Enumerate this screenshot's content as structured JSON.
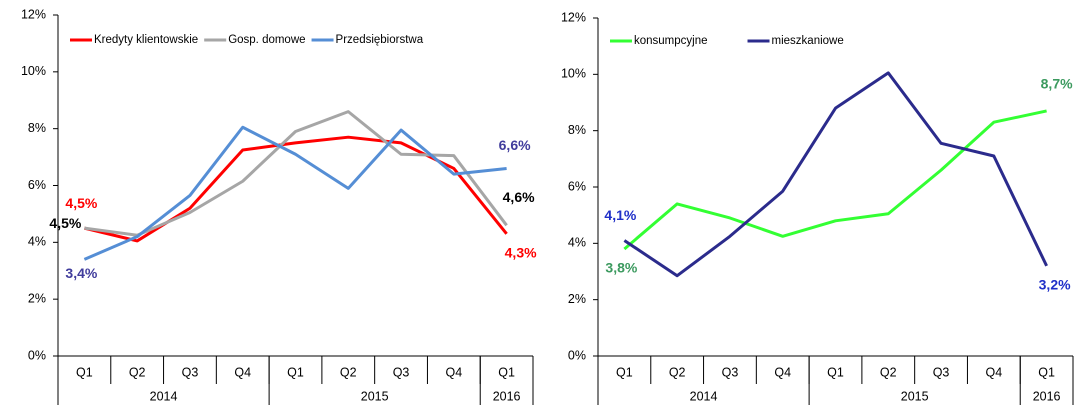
{
  "chart_data": [
    {
      "type": "line",
      "categories": [
        "Q1",
        "Q2",
        "Q3",
        "Q4",
        "Q1",
        "Q2",
        "Q3",
        "Q4",
        "Q1"
      ],
      "x_groups": [
        {
          "label": "2014",
          "size": 4
        },
        {
          "label": "2015",
          "size": 4
        },
        {
          "label": "2016",
          "size": 1
        }
      ],
      "ylim": [
        0,
        12
      ],
      "yticks": [
        {
          "value": 0,
          "label": "0%"
        },
        {
          "value": 2,
          "label": "2%"
        },
        {
          "value": 4,
          "label": "4%"
        },
        {
          "value": 6,
          "label": "6%"
        },
        {
          "value": 8,
          "label": "8%"
        },
        {
          "value": 10,
          "label": "10%"
        },
        {
          "value": 12,
          "label": "12%"
        }
      ],
      "legend": "top",
      "series": [
        {
          "name": "Kredyty klientowskie",
          "color": "#ff0000",
          "label_color": "#ff0000",
          "values": [
            4.5,
            4.05,
            5.2,
            7.25,
            7.5,
            7.7,
            7.5,
            6.6,
            4.3
          ],
          "value_labels": [
            "4,5%",
            null,
            null,
            null,
            null,
            null,
            null,
            null,
            "4,3%"
          ]
        },
        {
          "name": "Gosp. domowe",
          "color": "#a6a6a6",
          "label_color": "#000000",
          "values": [
            4.5,
            4.25,
            5.05,
            6.15,
            7.9,
            8.6,
            7.1,
            7.05,
            4.6
          ],
          "value_labels": [
            "4,5%",
            null,
            null,
            null,
            null,
            null,
            null,
            null,
            "4,6%"
          ]
        },
        {
          "name": "Przedsiębiorstwa",
          "color": "#558ed5",
          "label_color": "#403c9c",
          "values": [
            3.4,
            4.2,
            5.65,
            8.05,
            7.1,
            5.9,
            7.95,
            6.4,
            6.6
          ],
          "value_labels": [
            "3,4%",
            null,
            null,
            null,
            null,
            null,
            null,
            null,
            "6,6%"
          ]
        }
      ]
    },
    {
      "type": "line",
      "categories": [
        "Q1",
        "Q2",
        "Q3",
        "Q4",
        "Q1",
        "Q2",
        "Q3",
        "Q4",
        "Q1"
      ],
      "x_groups": [
        {
          "label": "2014",
          "size": 4
        },
        {
          "label": "2015",
          "size": 4
        },
        {
          "label": "2016",
          "size": 1
        }
      ],
      "ylim": [
        0,
        12
      ],
      "yticks": [
        {
          "value": 0,
          "label": "0%"
        },
        {
          "value": 2,
          "label": "2%"
        },
        {
          "value": 4,
          "label": "4%"
        },
        {
          "value": 6,
          "label": "6%"
        },
        {
          "value": 8,
          "label": "8%"
        },
        {
          "value": 10,
          "label": "10%"
        },
        {
          "value": 12,
          "label": "12%"
        }
      ],
      "legend": "top",
      "series": [
        {
          "name": "konsumpcyjne",
          "color": "#33ff33",
          "label_color": "#3c9a5f",
          "values": [
            3.8,
            5.4,
            4.9,
            4.25,
            4.8,
            5.05,
            6.6,
            8.3,
            8.7
          ],
          "value_labels": [
            "3,8%",
            null,
            null,
            null,
            null,
            null,
            null,
            null,
            "8,7%"
          ]
        },
        {
          "name": "mieszkaniowe",
          "color": "#2b2b8c",
          "label_color": "#1f2fc8",
          "values": [
            4.1,
            2.85,
            4.25,
            5.85,
            8.8,
            10.05,
            7.55,
            7.1,
            3.2
          ],
          "value_labels": [
            "4,1%",
            null,
            null,
            null,
            null,
            null,
            null,
            null,
            "3,2%"
          ]
        }
      ]
    }
  ]
}
